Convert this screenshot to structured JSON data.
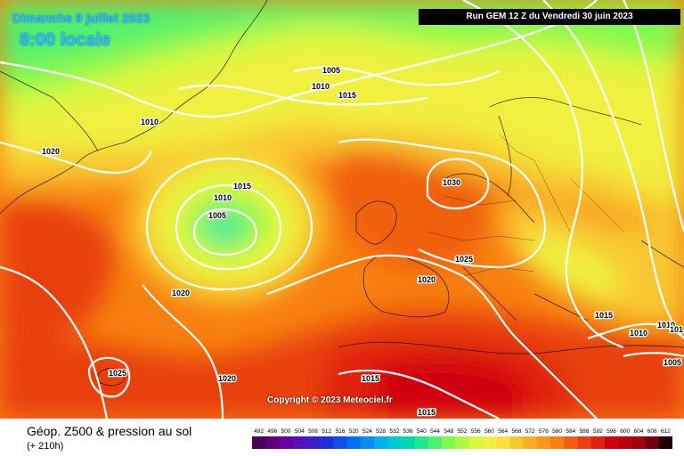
{
  "header": {
    "date": "Dimanche 9 juillet 2023",
    "time": "8:00 locale",
    "run": "Run GEM 12 Z du Vendredi 30 juin 2023"
  },
  "copyright": "Copyright © 2023 Meteociel.fr",
  "footer": {
    "title": "Géop. Z500 & pression au sol",
    "subtitle": "(+ 210h)"
  },
  "legend": {
    "labels": [
      "492",
      "496",
      "500",
      "504",
      "508",
      "512",
      "516",
      "520",
      "524",
      "528",
      "532",
      "536",
      "540",
      "544",
      "548",
      "552",
      "556",
      "560",
      "564",
      "568",
      "572",
      "576",
      "580",
      "584",
      "588",
      "592",
      "596",
      "600",
      "604",
      "608",
      "612"
    ],
    "colors": [
      "#4b0050",
      "#5e0078",
      "#6a00a0",
      "#5a10b8",
      "#3a20c8",
      "#2030d8",
      "#1050e8",
      "#0070f0",
      "#0090f0",
      "#00b0e8",
      "#00c8d0",
      "#00d8b0",
      "#20e890",
      "#50f070",
      "#80f850",
      "#b0f840",
      "#d8f840",
      "#f0f040",
      "#f8e040",
      "#f8c830",
      "#f8b020",
      "#f89818",
      "#f88010",
      "#f06010",
      "#e84010",
      "#e02010",
      "#d00010",
      "#b80010",
      "#a00010",
      "#700010",
      "#200000"
    ]
  },
  "isobars": [
    {
      "label": "1005",
      "pos": "north-atlantic"
    },
    {
      "label": "1010",
      "pos": "north-atlantic"
    },
    {
      "label": "1015",
      "pos": "north-atlantic"
    },
    {
      "label": "1010",
      "pos": "greenland-south"
    },
    {
      "label": "1020",
      "pos": "labrador"
    },
    {
      "label": "1015",
      "pos": "low-center"
    },
    {
      "label": "1010",
      "pos": "low-center"
    },
    {
      "label": "1005",
      "pos": "low-center"
    },
    {
      "label": "1030",
      "pos": "north-sea"
    },
    {
      "label": "1025",
      "pos": "central-europe"
    },
    {
      "label": "1020",
      "pos": "france"
    },
    {
      "label": "1020",
      "pos": "mid-atlantic"
    },
    {
      "label": "1025",
      "pos": "azores"
    },
    {
      "label": "1020",
      "pos": "south-atlantic"
    },
    {
      "label": "1015",
      "pos": "balkans"
    },
    {
      "label": "1010",
      "pos": "turkey"
    },
    {
      "label": "1010",
      "pos": "east-edge"
    },
    {
      "label": "101",
      "pos": "east-edge"
    },
    {
      "label": "1005",
      "pos": "east-edge"
    },
    {
      "label": "1015",
      "pos": "north-africa"
    },
    {
      "label": "1015",
      "pos": "sahara"
    }
  ]
}
